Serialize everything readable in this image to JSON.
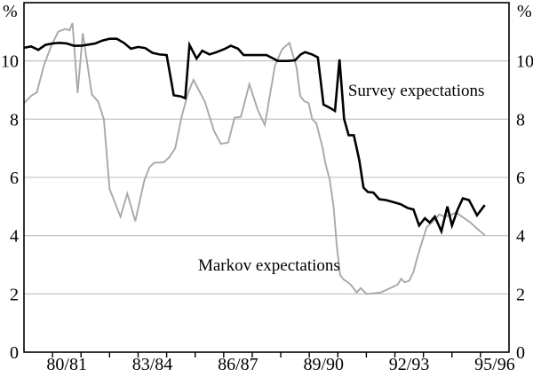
{
  "colors": {
    "background": "#ffffff",
    "frame": "#000000",
    "gridline": "#bdbdbd",
    "tick": "#000000",
    "text": "#000000",
    "survey_line": "#000000",
    "markov_line": "#a8a8a8"
  },
  "chart_data": {
    "type": "line",
    "title": "",
    "grid": true,
    "legend_position": "inline-annotations",
    "x_axis": {
      "min": 1979.5,
      "max": 1996.5,
      "tick_start": 1980.5,
      "tick_end": 1995.5,
      "tick_step": 1,
      "labels": [
        {
          "text": "80/81",
          "x": 1981
        },
        {
          "text": "83/84",
          "x": 1984
        },
        {
          "text": "86/87",
          "x": 1987
        },
        {
          "text": "89/90",
          "x": 1990
        },
        {
          "text": "92/93",
          "x": 1993
        },
        {
          "text": "95/96",
          "x": 1996
        }
      ]
    },
    "y_axis": {
      "min": 0,
      "max": 12,
      "unit": "%",
      "gridlines": [
        2,
        4,
        6,
        8,
        10
      ],
      "tick_labels": [
        10,
        8,
        6,
        4,
        2,
        0
      ],
      "sides": [
        "left",
        "right"
      ]
    },
    "series": [
      {
        "name": "Markov expectations",
        "color": "#a8a8a8",
        "stroke_width": 1.9,
        "points": [
          [
            1979.5,
            8.55
          ],
          [
            1979.75,
            8.8
          ],
          [
            1979.95,
            8.92
          ],
          [
            1980.2,
            9.85
          ],
          [
            1980.45,
            10.5
          ],
          [
            1980.7,
            11.0
          ],
          [
            1980.95,
            11.1
          ],
          [
            1981.1,
            11.05
          ],
          [
            1981.2,
            11.3
          ],
          [
            1981.38,
            8.9
          ],
          [
            1981.56,
            10.95
          ],
          [
            1981.88,
            8.85
          ],
          [
            1982.1,
            8.6
          ],
          [
            1982.3,
            8.0
          ],
          [
            1982.5,
            5.6
          ],
          [
            1982.88,
            4.65
          ],
          [
            1983.12,
            5.45
          ],
          [
            1983.4,
            4.5
          ],
          [
            1983.72,
            5.9
          ],
          [
            1983.9,
            6.35
          ],
          [
            1984.06,
            6.5
          ],
          [
            1984.4,
            6.52
          ],
          [
            1984.6,
            6.7
          ],
          [
            1984.8,
            7.0
          ],
          [
            1985.03,
            8.1
          ],
          [
            1985.25,
            8.9
          ],
          [
            1985.44,
            9.35
          ],
          [
            1985.84,
            8.6
          ],
          [
            1986.16,
            7.6
          ],
          [
            1986.4,
            7.15
          ],
          [
            1986.66,
            7.2
          ],
          [
            1986.88,
            8.05
          ],
          [
            1987.1,
            8.08
          ],
          [
            1987.4,
            9.2
          ],
          [
            1987.7,
            8.3
          ],
          [
            1987.94,
            7.8
          ],
          [
            1988.3,
            9.85
          ],
          [
            1988.55,
            10.4
          ],
          [
            1988.8,
            10.62
          ],
          [
            1989.05,
            9.8
          ],
          [
            1989.18,
            8.8
          ],
          [
            1989.32,
            8.62
          ],
          [
            1989.48,
            8.55
          ],
          [
            1989.6,
            8.0
          ],
          [
            1989.75,
            7.85
          ],
          [
            1989.97,
            7.0
          ],
          [
            1990.06,
            6.5
          ],
          [
            1990.22,
            5.9
          ],
          [
            1990.35,
            5.0
          ],
          [
            1990.47,
            3.6
          ],
          [
            1990.58,
            2.65
          ],
          [
            1990.7,
            2.5
          ],
          [
            1990.85,
            2.4
          ],
          [
            1990.97,
            2.3
          ],
          [
            1991.16,
            2.05
          ],
          [
            1991.3,
            2.2
          ],
          [
            1991.5,
            2.0
          ],
          [
            1991.75,
            2.02
          ],
          [
            1992.0,
            2.05
          ],
          [
            1992.3,
            2.18
          ],
          [
            1992.6,
            2.32
          ],
          [
            1992.72,
            2.52
          ],
          [
            1992.84,
            2.4
          ],
          [
            1993.0,
            2.45
          ],
          [
            1993.15,
            2.75
          ],
          [
            1993.3,
            3.3
          ],
          [
            1993.47,
            3.85
          ],
          [
            1993.62,
            4.3
          ],
          [
            1993.85,
            4.5
          ],
          [
            1994.06,
            4.73
          ],
          [
            1994.25,
            4.65
          ],
          [
            1994.45,
            4.7
          ],
          [
            1994.63,
            4.8
          ],
          [
            1994.9,
            4.62
          ],
          [
            1995.15,
            4.45
          ],
          [
            1995.4,
            4.22
          ],
          [
            1995.65,
            4.02
          ]
        ]
      },
      {
        "name": "Survey expectations",
        "color": "#000000",
        "stroke_width": 2.6,
        "points": [
          [
            1979.5,
            10.45
          ],
          [
            1979.75,
            10.5
          ],
          [
            1980.0,
            10.38
          ],
          [
            1980.25,
            10.55
          ],
          [
            1980.5,
            10.6
          ],
          [
            1980.75,
            10.62
          ],
          [
            1981.0,
            10.6
          ],
          [
            1981.25,
            10.52
          ],
          [
            1981.5,
            10.52
          ],
          [
            1981.75,
            10.56
          ],
          [
            1982.0,
            10.6
          ],
          [
            1982.25,
            10.7
          ],
          [
            1982.5,
            10.76
          ],
          [
            1982.75,
            10.76
          ],
          [
            1983.0,
            10.62
          ],
          [
            1983.25,
            10.42
          ],
          [
            1983.5,
            10.48
          ],
          [
            1983.75,
            10.44
          ],
          [
            1984.0,
            10.28
          ],
          [
            1984.25,
            10.22
          ],
          [
            1984.5,
            10.2
          ],
          [
            1984.75,
            8.82
          ],
          [
            1985.0,
            8.78
          ],
          [
            1985.15,
            8.72
          ],
          [
            1985.3,
            10.55
          ],
          [
            1985.55,
            10.08
          ],
          [
            1985.75,
            10.35
          ],
          [
            1986.0,
            10.22
          ],
          [
            1986.25,
            10.3
          ],
          [
            1986.55,
            10.42
          ],
          [
            1986.75,
            10.52
          ],
          [
            1987.0,
            10.42
          ],
          [
            1987.2,
            10.2
          ],
          [
            1987.5,
            10.2
          ],
          [
            1987.75,
            10.2
          ],
          [
            1988.0,
            10.2
          ],
          [
            1988.2,
            10.1
          ],
          [
            1988.4,
            10.0
          ],
          [
            1988.75,
            10.0
          ],
          [
            1989.0,
            10.02
          ],
          [
            1989.2,
            10.22
          ],
          [
            1989.35,
            10.3
          ],
          [
            1989.6,
            10.22
          ],
          [
            1989.8,
            10.12
          ],
          [
            1990.0,
            8.5
          ],
          [
            1990.2,
            8.4
          ],
          [
            1990.4,
            8.28
          ],
          [
            1990.56,
            10.05
          ],
          [
            1990.72,
            8.0
          ],
          [
            1990.88,
            7.45
          ],
          [
            1991.06,
            7.45
          ],
          [
            1991.25,
            6.6
          ],
          [
            1991.4,
            5.65
          ],
          [
            1991.55,
            5.5
          ],
          [
            1991.75,
            5.48
          ],
          [
            1991.95,
            5.25
          ],
          [
            1992.2,
            5.22
          ],
          [
            1992.45,
            5.15
          ],
          [
            1992.7,
            5.08
          ],
          [
            1992.95,
            4.95
          ],
          [
            1993.15,
            4.9
          ],
          [
            1993.35,
            4.35
          ],
          [
            1993.55,
            4.6
          ],
          [
            1993.72,
            4.45
          ],
          [
            1993.9,
            4.65
          ],
          [
            1994.13,
            4.15
          ],
          [
            1994.34,
            5.0
          ],
          [
            1994.5,
            4.35
          ],
          [
            1994.7,
            4.9
          ],
          [
            1994.88,
            5.28
          ],
          [
            1995.1,
            5.22
          ],
          [
            1995.38,
            4.7
          ],
          [
            1995.65,
            5.05
          ]
        ]
      }
    ],
    "annotations": [
      {
        "text": "Survey expectations",
        "x": 1993.25,
        "y": 8.95
      },
      {
        "text": "Markov expectations",
        "x": 1988.09,
        "y": 2.95
      }
    ]
  }
}
